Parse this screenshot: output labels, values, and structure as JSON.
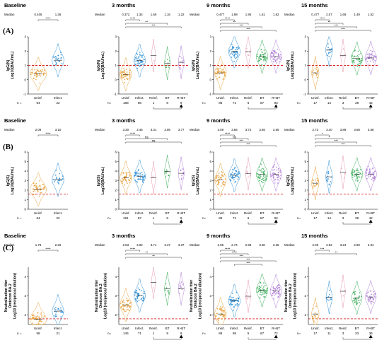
{
  "rows": [
    {
      "label": "(A)",
      "ylabel_lines": [
        "IgG(N)",
        "Log10(BAU/mL)"
      ],
      "ylim": [
        -1,
        3
      ],
      "yticks": [
        -1,
        0,
        1,
        2,
        3
      ],
      "cutoff": 1.0,
      "panels": [
        {
          "title": "Baseline",
          "median_label": "Median",
          "medians": [
            "0.405",
            "1.36"
          ],
          "categories": [
            "Uninf.",
            "Infect."
          ],
          "n_label": "n =",
          "n": [
            "64",
            "22"
          ],
          "brackets": [
            {
              "from": 0,
              "to": 1,
              "label": "****"
            }
          ]
        },
        {
          "title": "3 months",
          "median_label": "Median",
          "medians": [
            "0.372",
            "1.34",
            "1.69",
            "1.16",
            "1.22"
          ],
          "categories": [
            "Uninf.",
            "Infect.",
            "Reinf.",
            "BT",
            "R+BT"
          ],
          "n_label": "n=",
          "n": [
            "188",
            "86",
            "1",
            "8",
            "9"
          ],
          "brackets": [
            {
              "from": 0,
              "to": 1,
              "label": "****"
            },
            {
              "from": 0,
              "to": 3,
              "label": "**"
            },
            {
              "from": 0,
              "to": 4,
              "label": "***"
            }
          ]
        },
        {
          "title": "9 months",
          "median_label": "Median",
          "medians": [
            "0.477",
            "1.98",
            "1.95",
            "1.61",
            "1.62"
          ],
          "categories": [
            "Uninf.",
            "Infect.",
            "Reinf.",
            "BT",
            "R+BT"
          ],
          "n_label": "n=",
          "n": [
            "85",
            "71",
            "6",
            "87",
            "93"
          ],
          "brackets": [
            {
              "from": 0,
              "to": 1,
              "label": "****"
            },
            {
              "from": 0,
              "to": 2,
              "label": "**"
            },
            {
              "from": 0,
              "to": 3,
              "label": "***"
            },
            {
              "from": 0,
              "to": 4,
              "label": "***"
            }
          ]
        },
        {
          "title": "15 months",
          "median_label": "Median",
          "medians": [
            "0.477",
            "2.07",
            "1.69",
            "1.49",
            "1.52"
          ],
          "categories": [
            "Uninf.",
            "Infect.",
            "Reinf.",
            "BT",
            "R+BT"
          ],
          "n_label": "n=",
          "n": [
            "17",
            "14",
            "3",
            "39",
            "42"
          ],
          "brackets": [
            {
              "from": 0,
              "to": 1,
              "label": "****"
            },
            {
              "from": 0,
              "to": 2,
              "label": "**"
            },
            {
              "from": 0,
              "to": 3,
              "label": "***"
            },
            {
              "from": 0,
              "to": 4,
              "label": "***"
            }
          ]
        }
      ]
    },
    {
      "label": "(B)",
      "ylabel_lines": [
        "IgG(S)",
        "Log10(BAU/mL)"
      ],
      "ylim": [
        0,
        6
      ],
      "yticks": [
        0,
        1,
        2,
        3,
        4,
        5,
        6
      ],
      "cutoff": 1.6,
      "panels": [
        {
          "title": "Baseline",
          "median_label": "Median",
          "medians": [
            "2.08",
            "3.10"
          ],
          "categories": [
            "Uninf.",
            "Infect."
          ],
          "n_label": "n =",
          "n": [
            "64",
            "22"
          ],
          "brackets": [
            {
              "from": 0,
              "to": 1,
              "label": "****"
            }
          ]
        },
        {
          "title": "3 months",
          "median_label": "Median",
          "medians": [
            "3.30",
            "3.45",
            "3.31",
            "3.95",
            "3.77"
          ],
          "categories": [
            "Uninf.",
            "Infect.",
            "Reinf.",
            "BT",
            "R+BT"
          ],
          "n_label": "n=",
          "n": [
            "191",
            "87",
            "1",
            "8",
            "9"
          ],
          "brackets": [
            {
              "from": 0,
              "to": 1,
              "label": "****"
            },
            {
              "from": 0,
              "to": 3,
              "label": "ns"
            },
            {
              "from": 0,
              "to": 4,
              "label": "ns"
            }
          ]
        },
        {
          "title": "9 months",
          "median_label": "Median",
          "medians": [
            "3.09",
            "3.56",
            "3.72",
            "3.65",
            "3.65"
          ],
          "categories": [
            "Uninf.",
            "Infect.",
            "Reinf.",
            "BT",
            "R+BT"
          ],
          "n_label": "n=",
          "n": [
            "85",
            "71",
            "6",
            "87",
            "93"
          ],
          "brackets": [
            {
              "from": 0,
              "to": 1,
              "label": "****"
            },
            {
              "from": 0,
              "to": 2,
              "label": "ns"
            },
            {
              "from": 0,
              "to": 3,
              "label": "***"
            },
            {
              "from": 0,
              "to": 4,
              "label": "***"
            }
          ]
        },
        {
          "title": "15 months",
          "median_label": "Median",
          "medians": [
            "2.73",
            "3.40",
            "3.89",
            "3.68",
            "3.68"
          ],
          "categories": [
            "Uninf.",
            "Infect.",
            "Reinf.",
            "BT",
            "R+BT"
          ],
          "n_label": "n=",
          "n": [
            "17",
            "14",
            "3",
            "39",
            "42"
          ],
          "brackets": [
            {
              "from": 0,
              "to": 1,
              "label": "*"
            },
            {
              "from": 0,
              "to": 2,
              "label": "*"
            },
            {
              "from": 0,
              "to": 3,
              "label": "***"
            },
            {
              "from": 0,
              "to": 4,
              "label": "***"
            }
          ]
        }
      ]
    },
    {
      "label": "(C)",
      "ylabel_lines": [
        "Neutralization titer",
        "Omicron BA.2",
        "Log10 (reciprocal dilution)"
      ],
      "ylim": [
        1.5,
        4.5
      ],
      "yticks": [
        2,
        3,
        4
      ],
      "cutoff": 1.8,
      "panels": [
        {
          "title": "Baseline",
          "median_label": "Median",
          "medians": [
            "1.78",
            "2.20"
          ],
          "categories": [
            "Uninf.",
            "Infect."
          ],
          "n_label": "n =",
          "n": [
            "58",
            "21"
          ],
          "brackets": [
            {
              "from": 0,
              "to": 1,
              "label": "****"
            }
          ]
        },
        {
          "title": "3 months",
          "median_label": "Median",
          "medians": [
            "2.53",
            "3.02",
            "3.71",
            "3.37",
            "3.37"
          ],
          "categories": [
            "Uninf.",
            "Infect.",
            "Reinf.",
            "BT",
            "R+BT"
          ],
          "n_label": "n=",
          "n": [
            "145",
            "71",
            "1",
            "8",
            "9"
          ],
          "brackets": [
            {
              "from": 0,
              "to": 1,
              "label": "****"
            },
            {
              "from": 0,
              "to": 3,
              "label": "**"
            },
            {
              "from": 0,
              "to": 4,
              "label": "**"
            }
          ]
        },
        {
          "title": "9 months",
          "median_label": "Median",
          "medians": [
            "2.05",
            "2.74",
            "2.98",
            "3.30",
            "3.25"
          ],
          "categories": [
            "Uninf.",
            "Infect.",
            "Reinf.",
            "BT",
            "R+BT"
          ],
          "n_label": "n=",
          "n": [
            "86",
            "58",
            "5",
            "67",
            "72"
          ],
          "brackets": [
            {
              "from": 0,
              "to": 1,
              "label": "****"
            },
            {
              "from": 0,
              "to": 2,
              "label": "****"
            },
            {
              "from": 0,
              "to": 3,
              "label": "***"
            },
            {
              "from": 0,
              "to": 4,
              "label": "***"
            },
            {
              "from": 1,
              "to": 3,
              "label": "***"
            }
          ]
        },
        {
          "title": "15 months",
          "median_label": "Median",
          "medians": [
            "2.05",
            "2.92",
            "3.24",
            "2.90",
            "2.94"
          ],
          "categories": [
            "Uninf.",
            "Infect.",
            "Reinf.",
            "BT",
            "R+BT"
          ],
          "n_label": "n=",
          "n": [
            "17",
            "11",
            "3",
            "33",
            "36"
          ],
          "brackets": [
            {
              "from": 0,
              "to": 1,
              "label": "***"
            },
            {
              "from": 0,
              "to": 3,
              "label": "**"
            }
          ]
        }
      ]
    }
  ],
  "colors": {
    "Uninf.": "#e8a23c",
    "Infect.": "#2f8fd6",
    "Reinf.": "#e89ab0",
    "BT": "#3cae5a",
    "R+BT": "#b07fd6",
    "cutoff": "#d62020"
  },
  "chart_data": [
    {
      "type": "scatter",
      "panel": "A-Baseline",
      "ylabel": "IgG(N) Log10(BAU/mL)",
      "ylim": [
        -1,
        3
      ],
      "series": [
        {
          "name": "Uninf.",
          "median": 0.405,
          "n": 64
        },
        {
          "name": "Infect.",
          "median": 1.36,
          "n": 22
        }
      ]
    },
    {
      "type": "scatter",
      "panel": "A-3 months",
      "ylabel": "IgG(N) Log10(BAU/mL)",
      "ylim": [
        -1,
        3
      ],
      "series": [
        {
          "name": "Uninf.",
          "median": 0.372,
          "n": 188
        },
        {
          "name": "Infect.",
          "median": 1.34,
          "n": 86
        },
        {
          "name": "Reinf.",
          "median": 1.69,
          "n": 1
        },
        {
          "name": "BT",
          "median": 1.16,
          "n": 8
        },
        {
          "name": "R+BT",
          "median": 1.22,
          "n": 9
        }
      ]
    },
    {
      "type": "scatter",
      "panel": "A-9 months",
      "ylabel": "IgG(N) Log10(BAU/mL)",
      "ylim": [
        -1,
        3
      ],
      "series": [
        {
          "name": "Uninf.",
          "median": 0.477,
          "n": 85
        },
        {
          "name": "Infect.",
          "median": 1.98,
          "n": 71
        },
        {
          "name": "Reinf.",
          "median": 1.95,
          "n": 6
        },
        {
          "name": "BT",
          "median": 1.61,
          "n": 87
        },
        {
          "name": "R+BT",
          "median": 1.62,
          "n": 93
        }
      ]
    },
    {
      "type": "scatter",
      "panel": "A-15 months",
      "ylabel": "IgG(N) Log10(BAU/mL)",
      "ylim": [
        -1,
        3
      ],
      "series": [
        {
          "name": "Uninf.",
          "median": 0.477,
          "n": 17
        },
        {
          "name": "Infect.",
          "median": 2.07,
          "n": 14
        },
        {
          "name": "Reinf.",
          "median": 1.69,
          "n": 3
        },
        {
          "name": "BT",
          "median": 1.49,
          "n": 39
        },
        {
          "name": "R+BT",
          "median": 1.52,
          "n": 42
        }
      ]
    },
    {
      "type": "scatter",
      "panel": "B-Baseline",
      "ylabel": "IgG(S) Log10(BAU/mL)",
      "ylim": [
        0,
        6
      ],
      "series": [
        {
          "name": "Uninf.",
          "median": 2.08,
          "n": 64
        },
        {
          "name": "Infect.",
          "median": 3.1,
          "n": 22
        }
      ]
    },
    {
      "type": "scatter",
      "panel": "B-3 months",
      "ylabel": "IgG(S) Log10(BAU/mL)",
      "ylim": [
        0,
        6
      ],
      "series": [
        {
          "name": "Uninf.",
          "median": 3.3,
          "n": 191
        },
        {
          "name": "Infect.",
          "median": 3.45,
          "n": 87
        },
        {
          "name": "Reinf.",
          "median": 3.31,
          "n": 1
        },
        {
          "name": "BT",
          "median": 3.95,
          "n": 8
        },
        {
          "name": "R+BT",
          "median": 3.77,
          "n": 9
        }
      ]
    },
    {
      "type": "scatter",
      "panel": "B-9 months",
      "ylabel": "IgG(S) Log10(BAU/mL)",
      "ylim": [
        0,
        6
      ],
      "series": [
        {
          "name": "Uninf.",
          "median": 3.09,
          "n": 85
        },
        {
          "name": "Infect.",
          "median": 3.56,
          "n": 71
        },
        {
          "name": "Reinf.",
          "median": 3.72,
          "n": 6
        },
        {
          "name": "BT",
          "median": 3.65,
          "n": 87
        },
        {
          "name": "R+BT",
          "median": 3.65,
          "n": 93
        }
      ]
    },
    {
      "type": "scatter",
      "panel": "B-15 months",
      "ylabel": "IgG(S) Log10(BAU/mL)",
      "ylim": [
        0,
        6
      ],
      "series": [
        {
          "name": "Uninf.",
          "median": 2.73,
          "n": 17
        },
        {
          "name": "Infect.",
          "median": 3.4,
          "n": 14
        },
        {
          "name": "Reinf.",
          "median": 3.89,
          "n": 3
        },
        {
          "name": "BT",
          "median": 3.68,
          "n": 39
        },
        {
          "name": "R+BT",
          "median": 3.68,
          "n": 42
        }
      ]
    },
    {
      "type": "scatter",
      "panel": "C-Baseline",
      "ylabel": "Neutralization titer Omicron BA.2 Log10 (reciprocal dilution)",
      "ylim": [
        1.5,
        4.5
      ],
      "series": [
        {
          "name": "Uninf.",
          "median": 1.78,
          "n": 58
        },
        {
          "name": "Infect.",
          "median": 2.2,
          "n": 21
        }
      ]
    },
    {
      "type": "scatter",
      "panel": "C-3 months",
      "ylabel": "Neutralization titer Omicron BA.2 Log10 (reciprocal dilution)",
      "ylim": [
        1.5,
        4.5
      ],
      "series": [
        {
          "name": "Uninf.",
          "median": 2.53,
          "n": 145
        },
        {
          "name": "Infect.",
          "median": 3.02,
          "n": 71
        },
        {
          "name": "Reinf.",
          "median": 3.71,
          "n": 1
        },
        {
          "name": "BT",
          "median": 3.37,
          "n": 8
        },
        {
          "name": "R+BT",
          "median": 3.37,
          "n": 9
        }
      ]
    },
    {
      "type": "scatter",
      "panel": "C-9 months",
      "ylabel": "Neutralization titer Omicron BA.2 Log10 (reciprocal dilution)",
      "ylim": [
        1.5,
        4.5
      ],
      "series": [
        {
          "name": "Uninf.",
          "median": 2.05,
          "n": 86
        },
        {
          "name": "Infect.",
          "median": 2.74,
          "n": 58
        },
        {
          "name": "Reinf.",
          "median": 2.98,
          "n": 5
        },
        {
          "name": "BT",
          "median": 3.3,
          "n": 67
        },
        {
          "name": "R+BT",
          "median": 3.25,
          "n": 72
        }
      ]
    },
    {
      "type": "scatter",
      "panel": "C-15 months",
      "ylabel": "Neutralization titer Omicron BA.2 Log10 (reciprocal dilution)",
      "ylim": [
        1.5,
        4.5
      ],
      "series": [
        {
          "name": "Uninf.",
          "median": 2.05,
          "n": 17
        },
        {
          "name": "Infect.",
          "median": 2.92,
          "n": 11
        },
        {
          "name": "Reinf.",
          "median": 3.24,
          "n": 3
        },
        {
          "name": "BT",
          "median": 2.9,
          "n": 33
        },
        {
          "name": "R+BT",
          "median": 2.94,
          "n": 36
        }
      ]
    }
  ]
}
